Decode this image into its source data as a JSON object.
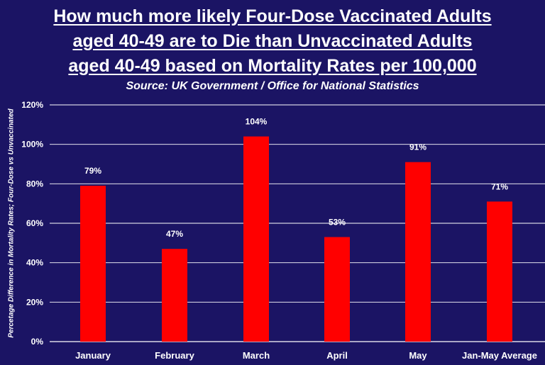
{
  "title_lines": [
    "How much more likely Four-Dose Vaccinated Adults",
    "aged 40-49 are to Die than Unvaccinated Adults",
    "aged 40-49 based on Mortality Rates per 100,000"
  ],
  "subtitle": "Source: UK Government / Office for National Statistics",
  "colors": {
    "background": "#1b1464",
    "bar": "#ff0000",
    "grid": "#ffffff",
    "text": "#ffffff"
  },
  "chart_data": {
    "type": "bar",
    "title": "How much more likely Four-Dose Vaccinated Adults aged 40-49 are to Die than Unvaccinated Adults aged 40-49 based on Mortality Rates per 100,000",
    "subtitle": "Source: UK Government / Office for National Statistics",
    "xlabel": "",
    "ylabel": "Percetage Difference in Mortality Rates; Four-Dose vs Unvaccinated",
    "categories": [
      "January",
      "February",
      "March",
      "April",
      "May",
      "Jan-May Average"
    ],
    "values": [
      79,
      47,
      104,
      53,
      91,
      71
    ],
    "data_labels": [
      "79%",
      "47%",
      "104%",
      "53%",
      "91%",
      "71%"
    ],
    "ylim": [
      0,
      120
    ],
    "yticks": [
      0,
      20,
      40,
      60,
      80,
      100,
      120
    ],
    "ytick_labels": [
      "0%",
      "20%",
      "40%",
      "60%",
      "80%",
      "100%",
      "120%"
    ],
    "grid": true,
    "legend": "none"
  }
}
